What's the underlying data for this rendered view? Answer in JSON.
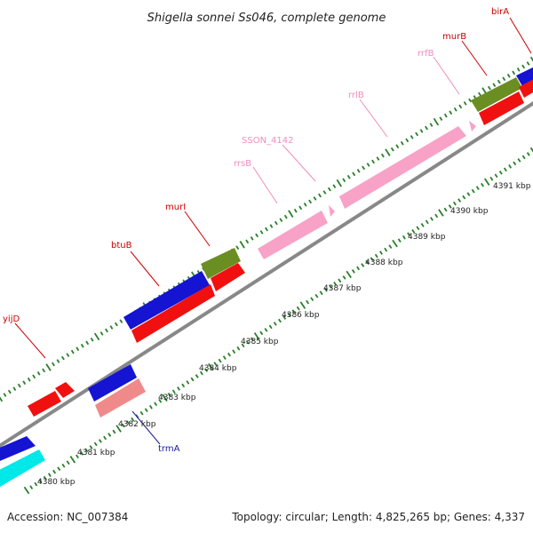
{
  "title": "Shigella sonnei Ss046, complete genome",
  "footer": {
    "accession": "Accession: NC_007384",
    "topology": "Topology: circular; Length: 4,825,265 bp; Genes: 4,337"
  },
  "colors": {
    "backbone": "#888888",
    "ticks": "#2a7f2a",
    "blue": "#1414d2",
    "red": "#f01010",
    "green": "#6b8e23",
    "pink": "#f8a2c8",
    "salmon": "#f08a8a",
    "cyan": "#00e8e8",
    "label_red": "#cc0000",
    "label_pink": "#f08cbc",
    "label_blue": "#1a1aa0"
  },
  "scale": {
    "unit": "kbp",
    "labels": [
      "4380 kbp",
      "4381 kbp",
      "4382 kbp",
      "4383 kbp",
      "4384 kbp",
      "4385 kbp",
      "4386 kbp",
      "4387 kbp",
      "4388 kbp",
      "4389 kbp",
      "4390 kbp",
      "4391 kbp"
    ]
  },
  "genes": [
    {
      "name": "yijD",
      "color": "label_red"
    },
    {
      "name": "btuB",
      "color": "label_red"
    },
    {
      "name": "murI",
      "color": "label_red"
    },
    {
      "name": "rrsB",
      "color": "label_pink"
    },
    {
      "name": "SSON_4142",
      "color": "label_pink"
    },
    {
      "name": "rrlB",
      "color": "label_pink"
    },
    {
      "name": "rrfB",
      "color": "label_pink"
    },
    {
      "name": "murB",
      "color": "label_red"
    },
    {
      "name": "birA",
      "color": "label_red"
    },
    {
      "name": "trmA",
      "color": "label_blue"
    }
  ]
}
